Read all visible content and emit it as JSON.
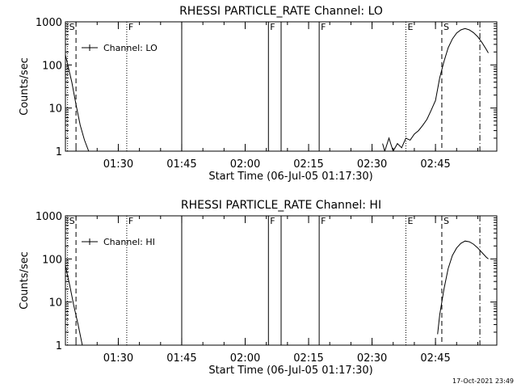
{
  "footer": {
    "timestamp": "17-Oct-2021 23:49"
  },
  "chart_data": [
    {
      "type": "line",
      "title": "RHESSI PARTICLE_RATE Channel: LO",
      "xlabel": "Start Time (06-Jul-05 01:17:30)",
      "ylabel": "Counts/sec",
      "y_scale": "log",
      "ylim": [
        1,
        1000
      ],
      "xlim": [
        "01:17:30",
        "02:59:30"
      ],
      "x_ticks": [
        "01:30",
        "01:45",
        "02:00",
        "02:15",
        "02:30",
        "02:45"
      ],
      "y_ticks": [
        "1",
        "10",
        "100",
        "1000"
      ],
      "legend": {
        "label": "Channel: LO",
        "position": "top-left"
      },
      "series": [
        {
          "x": [
            "01:17:30",
            "01:19",
            "01:20",
            "01:21",
            "01:22",
            "01:23"
          ],
          "values": [
            170,
            40,
            12,
            4,
            1.8,
            1
          ]
        },
        {
          "x": [
            "02:32:30",
            "02:33",
            "02:34",
            "02:35",
            "02:36",
            "02:37",
            "02:38",
            "02:39",
            "02:40",
            "02:41",
            "02:42",
            "02:43",
            "02:44",
            "02:45",
            "02:46",
            "02:47",
            "02:48",
            "02:49",
            "02:50",
            "02:51",
            "02:52",
            "02:53",
            "02:54",
            "02:55",
            "02:56",
            "02:57",
            "02:57:30"
          ],
          "values": [
            1.5,
            1,
            2,
            1,
            1.5,
            1.2,
            2,
            1.8,
            2.5,
            3,
            4,
            5.5,
            9,
            15,
            50,
            120,
            250,
            400,
            550,
            650,
            700,
            650,
            560,
            450,
            330,
            230,
            190
          ]
        }
      ],
      "markers": [
        {
          "label": "S",
          "x": "01:18:00",
          "style": "dotted"
        },
        {
          "label": "",
          "x": "01:20:00",
          "style": "dashed"
        },
        {
          "label": "F",
          "x": "01:32:00",
          "style": "dotted"
        },
        {
          "label": "",
          "x": "01:45:00",
          "style": "solid"
        },
        {
          "label": "F",
          "x": "02:05:30",
          "style": "solid"
        },
        {
          "label": "",
          "x": "02:08:30",
          "style": "solid"
        },
        {
          "label": "F",
          "x": "02:17:30",
          "style": "solid"
        },
        {
          "label": "E",
          "x": "02:38:00",
          "style": "dotted"
        },
        {
          "label": "S",
          "x": "02:46:30",
          "style": "dashed"
        },
        {
          "label": "",
          "x": "02:55:30",
          "style": "dash-dot"
        }
      ]
    },
    {
      "type": "line",
      "title": "RHESSI PARTICLE_RATE Channel: HI",
      "xlabel": "Start Time (06-Jul-05 01:17:30)",
      "ylabel": "Counts/sec",
      "y_scale": "log",
      "ylim": [
        1,
        1000
      ],
      "xlim": [
        "01:17:30",
        "02:59:30"
      ],
      "x_ticks": [
        "01:30",
        "01:45",
        "02:00",
        "02:15",
        "02:30",
        "02:45"
      ],
      "y_ticks": [
        "1",
        "10",
        "100",
        "1000"
      ],
      "legend": {
        "label": "Channel: HI",
        "position": "top-left"
      },
      "series": [
        {
          "x": [
            "01:17:30",
            "01:18:30",
            "01:19:30",
            "01:20:30",
            "01:21:30"
          ],
          "values": [
            70,
            25,
            8,
            3,
            1
          ]
        },
        {
          "x": [
            "02:45:30",
            "02:46",
            "02:47",
            "02:48",
            "02:49",
            "02:50",
            "02:51",
            "02:52",
            "02:53",
            "02:54",
            "02:55",
            "02:56",
            "02:57",
            "02:57:30"
          ],
          "values": [
            1.8,
            5,
            20,
            60,
            120,
            180,
            230,
            260,
            250,
            220,
            180,
            140,
            110,
            100
          ]
        }
      ],
      "markers": [
        {
          "label": "S",
          "x": "01:18:00",
          "style": "dotted"
        },
        {
          "label": "",
          "x": "01:20:00",
          "style": "dashed"
        },
        {
          "label": "F",
          "x": "01:32:00",
          "style": "dotted"
        },
        {
          "label": "",
          "x": "01:45:00",
          "style": "solid"
        },
        {
          "label": "F",
          "x": "02:05:30",
          "style": "solid"
        },
        {
          "label": "",
          "x": "02:08:30",
          "style": "solid"
        },
        {
          "label": "F",
          "x": "02:17:30",
          "style": "solid"
        },
        {
          "label": "E",
          "x": "02:38:00",
          "style": "dotted"
        },
        {
          "label": "S",
          "x": "02:46:30",
          "style": "dashed"
        },
        {
          "label": "",
          "x": "02:55:30",
          "style": "dash-dot"
        }
      ]
    }
  ]
}
